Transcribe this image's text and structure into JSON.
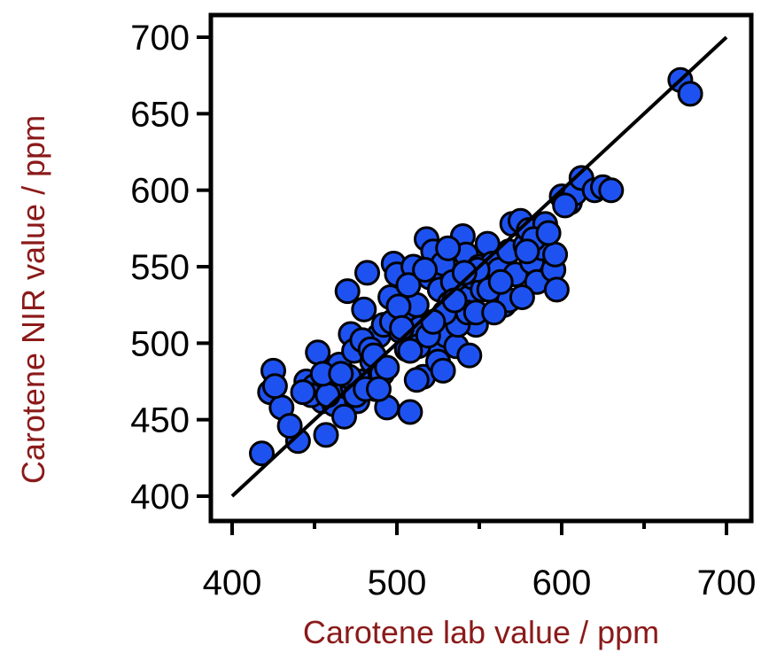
{
  "chart_data": {
    "type": "scatter",
    "xlabel": "Carotene lab value / ppm",
    "ylabel": "Carotene NIR value / ppm",
    "xlim": [
      390,
      715
    ],
    "ylim": [
      390,
      715
    ],
    "x_ticks": [
      400,
      500,
      600,
      700
    ],
    "x_tick_labels": [
      "400",
      "500",
      "600",
      "700"
    ],
    "y_ticks": [
      400,
      450,
      500,
      550,
      600,
      650,
      700
    ],
    "y_tick_labels": [
      "400",
      "450",
      "500",
      "550",
      "600",
      "650",
      "700"
    ],
    "grid": false,
    "legend": "none",
    "colors": {
      "marker_fill": "#1e52f0",
      "marker_edge": "#000000",
      "axis_title": "#8b1a1a",
      "line": "#000000"
    },
    "reference_line": {
      "x": [
        400,
        700
      ],
      "y": [
        400,
        700
      ]
    },
    "points": {
      "x": [
        418,
        423,
        425,
        430,
        426,
        440,
        445,
        450,
        452,
        455,
        457,
        448,
        460,
        462,
        465,
        468,
        470,
        472,
        474,
        476,
        478,
        480,
        482,
        485,
        487,
        489,
        490,
        492,
        494,
        496,
        498,
        500,
        502,
        504,
        506,
        508,
        510,
        512,
        514,
        516,
        518,
        520,
        522,
        524,
        526,
        528,
        530,
        532,
        534,
        536,
        538,
        540,
        542,
        544,
        546,
        548,
        550,
        552,
        555,
        558,
        560,
        562,
        565,
        568,
        570,
        572,
        575,
        578,
        580,
        582,
        585,
        588,
        590,
        595,
        597,
        600,
        605,
        608,
        612,
        620,
        625,
        630,
        672,
        678,
        473,
        479,
        484,
        491,
        497,
        501,
        507,
        513,
        519,
        525,
        531,
        537,
        543,
        549,
        435,
        458,
        471,
        486,
        503,
        517,
        529,
        541,
        556,
        568,
        583,
        596,
        455,
        468,
        475,
        481,
        494,
        508,
        522,
        535,
        548,
        563,
        579,
        592,
        602,
        443,
        466,
        489,
        512,
        528,
        544,
        559,
        576
      ],
      "y": [
        428,
        468,
        482,
        458,
        472,
        436,
        475,
        472,
        494,
        462,
        440,
        466,
        475,
        460,
        486,
        472,
        534,
        506,
        495,
        462,
        475,
        522,
        546,
        488,
        470,
        505,
        480,
        512,
        458,
        530,
        552,
        545,
        508,
        520,
        496,
        455,
        550,
        525,
        510,
        478,
        568,
        543,
        560,
        497,
        535,
        552,
        505,
        526,
        540,
        498,
        522,
        570,
        558,
        530,
        543,
        512,
        550,
        535,
        565,
        552,
        534,
        548,
        525,
        560,
        578,
        545,
        580,
        564,
        574,
        553,
        540,
        562,
        578,
        548,
        535,
        596,
        592,
        598,
        608,
        600,
        602,
        600,
        672,
        663,
        472,
        502,
        496,
        480,
        514,
        524,
        538,
        498,
        505,
        488,
        562,
        512,
        520,
        548,
        446,
        466,
        478,
        492,
        510,
        548,
        520,
        546,
        535,
        528,
        568,
        558,
        480,
        452,
        466,
        470,
        484,
        495,
        514,
        528,
        520,
        540,
        560,
        572,
        590,
        468,
        480,
        470,
        476,
        482,
        492,
        520,
        530
      ]
    }
  }
}
